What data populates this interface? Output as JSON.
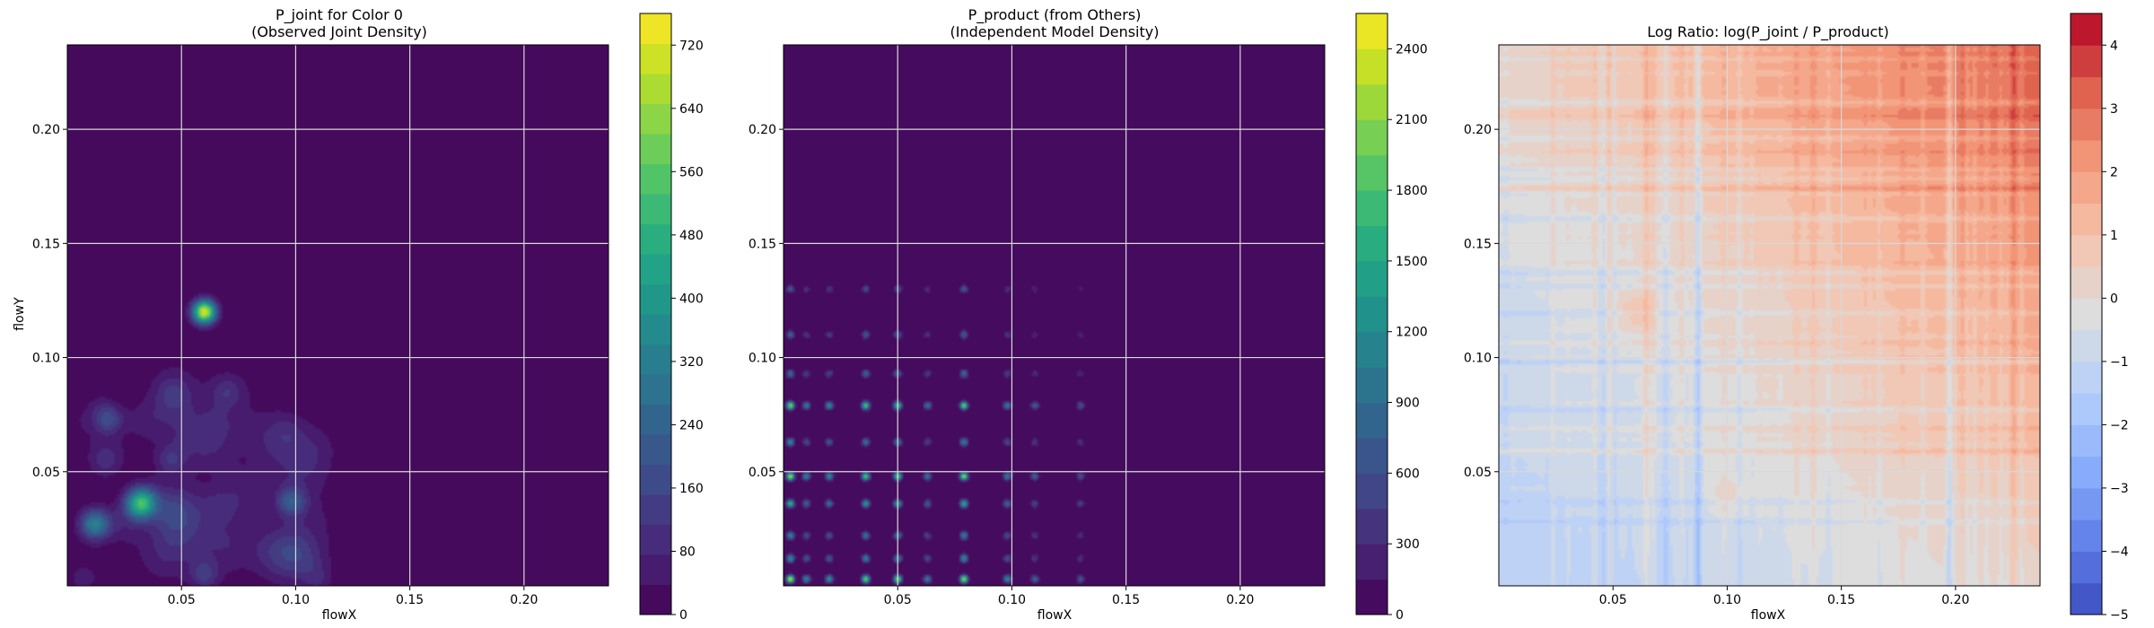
{
  "chart_data": [
    {
      "type": "heatmap",
      "title": "P_joint for Color 0\n(Observed Joint Density)",
      "xlabel": "flowX",
      "ylabel": "flowY",
      "xlim": [
        0.0,
        0.237
      ],
      "ylim": [
        0.0,
        0.237
      ],
      "xticks": [
        0.05,
        0.1,
        0.15,
        0.2
      ],
      "yticks": [
        0.05,
        0.1,
        0.15,
        0.2
      ],
      "xtick_labels": [
        "0.05",
        "0.10",
        "0.15",
        "0.20"
      ],
      "ytick_labels": [
        "0.05",
        "0.10",
        "0.15",
        "0.20"
      ],
      "grid": true,
      "colormap": "viridis",
      "colorbar": {
        "min": 0,
        "max": 760,
        "levels": 20,
        "ticks": [
          0,
          80,
          160,
          240,
          320,
          400,
          480,
          560,
          640,
          720
        ],
        "tick_labels": [
          "0",
          "80",
          "160",
          "240",
          "320",
          "400",
          "480",
          "560",
          "640",
          "720"
        ]
      },
      "peaks": [
        {
          "x": 0.06,
          "y": 0.12,
          "value": 720
        },
        {
          "x": 0.032,
          "y": 0.036,
          "value": 480
        },
        {
          "x": 0.012,
          "y": 0.027,
          "value": 320
        },
        {
          "x": 0.098,
          "y": 0.037,
          "value": 200
        },
        {
          "x": 0.018,
          "y": 0.073,
          "value": 160
        },
        {
          "x": 0.06,
          "y": 0.005,
          "value": 120
        },
        {
          "x": 0.045,
          "y": 0.055,
          "value": 90
        },
        {
          "x": 0.07,
          "y": 0.085,
          "value": 70
        }
      ]
    },
    {
      "type": "heatmap",
      "title": "P_product (from Others)\n(Independent Model Density)",
      "xlabel": "flowX",
      "ylabel": "",
      "xlim": [
        0.0,
        0.237
      ],
      "ylim": [
        0.0,
        0.237
      ],
      "xticks": [
        0.05,
        0.1,
        0.15,
        0.2
      ],
      "yticks": [
        0.05,
        0.1,
        0.15,
        0.2
      ],
      "xtick_labels": [
        "0.05",
        "0.10",
        "0.15",
        "0.20"
      ],
      "ytick_labels": [
        "0.05",
        "0.10",
        "0.15",
        "0.20"
      ],
      "grid": true,
      "colormap": "viridis",
      "colorbar": {
        "min": 0,
        "max": 2550,
        "levels": 17,
        "ticks": [
          0,
          300,
          600,
          900,
          1200,
          1500,
          1800,
          2100,
          2400
        ],
        "tick_labels": [
          "0",
          "300",
          "600",
          "900",
          "1200",
          "1500",
          "1800",
          "2100",
          "2400"
        ]
      },
      "marginal_x_peaks": [
        0.003,
        0.01,
        0.02,
        0.036,
        0.05,
        0.063,
        0.079,
        0.098,
        0.11,
        0.13
      ],
      "marginal_y_peaks": [
        0.003,
        0.012,
        0.022,
        0.036,
        0.048,
        0.063,
        0.079,
        0.093,
        0.11,
        0.13
      ],
      "max_value": 2400
    },
    {
      "type": "heatmap",
      "title": "Log Ratio: log(P_joint / P_product)",
      "xlabel": "flowX",
      "ylabel": "",
      "xlim": [
        0.0,
        0.237
      ],
      "ylim": [
        0.0,
        0.237
      ],
      "xticks": [
        0.05,
        0.1,
        0.15,
        0.2
      ],
      "yticks": [
        0.05,
        0.1,
        0.15,
        0.2
      ],
      "xtick_labels": [
        "0.05",
        "0.10",
        "0.15",
        "0.20"
      ],
      "ytick_labels": [
        "0.05",
        "0.10",
        "0.15",
        "0.20"
      ],
      "grid": true,
      "colormap": "coolwarm",
      "colorbar": {
        "min": -5,
        "max": 4.5,
        "levels": 19,
        "ticks": [
          -5,
          -4,
          -3,
          -2,
          -1,
          0,
          1,
          2,
          3,
          4
        ],
        "tick_labels": [
          "−5",
          "−4",
          "−3",
          "−2",
          "−1",
          "0",
          "1",
          "2",
          "3",
          "4"
        ]
      },
      "trend": {
        "low_corner_value": -1.2,
        "high_corner_value": 3.5
      }
    }
  ]
}
